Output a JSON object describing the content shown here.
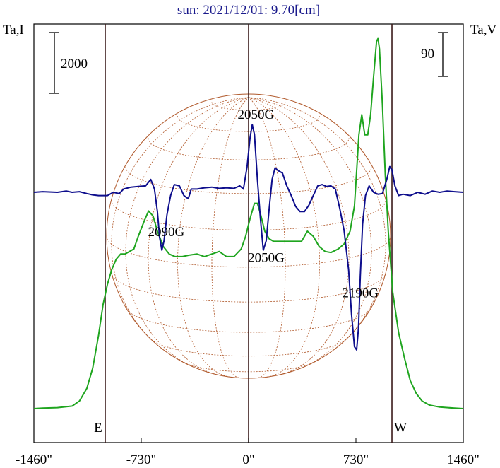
{
  "chart_data": {
    "type": "line",
    "title": "sun: 2021/12/01: 9.70[cm]",
    "left_axis_label": "Ta,I",
    "right_axis_label": "Ta,V",
    "left_scale_bar": "2000",
    "right_scale_bar": "90",
    "x_unit": "arcsec",
    "xlim": [
      -1460,
      1460
    ],
    "x_ticks": [
      {
        "value": -1460,
        "label": "-1460\""
      },
      {
        "value": -730,
        "label": "-730\""
      },
      {
        "value": 0,
        "label": "0\""
      },
      {
        "value": 730,
        "label": "730\""
      },
      {
        "value": 1460,
        "label": "1460\""
      }
    ],
    "limb_markers": [
      {
        "x": -975,
        "label": "E"
      },
      {
        "x": 975,
        "label": "W"
      }
    ],
    "annotations": [
      {
        "text": "2050G",
        "x": 50,
        "curve": "V",
        "position": "above"
      },
      {
        "text": "2090G",
        "x": -560,
        "curve": "V",
        "position": "below"
      },
      {
        "text": "2050G",
        "x": 120,
        "curve": "V",
        "position": "below"
      },
      {
        "text": "2190G",
        "x": 760,
        "curve": "V",
        "position": "below"
      }
    ],
    "series": [
      {
        "id": "I",
        "color": "#1fa51f",
        "points": [
          [
            -1460,
            0.0
          ],
          [
            -1400,
            0.01
          ],
          [
            -1300,
            0.02
          ],
          [
            -1200,
            0.05
          ],
          [
            -1150,
            0.15
          ],
          [
            -1100,
            0.4
          ],
          [
            -1060,
            0.8
          ],
          [
            -1020,
            1.45
          ],
          [
            -990,
            2.05
          ],
          [
            -960,
            2.45
          ],
          [
            -930,
            2.75
          ],
          [
            -900,
            2.95
          ],
          [
            -870,
            3.05
          ],
          [
            -840,
            3.05
          ],
          [
            -810,
            3.1
          ],
          [
            -780,
            3.15
          ],
          [
            -750,
            3.4
          ],
          [
            -710,
            3.7
          ],
          [
            -680,
            3.9
          ],
          [
            -650,
            3.8
          ],
          [
            -620,
            3.5
          ],
          [
            -580,
            3.2
          ],
          [
            -540,
            3.05
          ],
          [
            -500,
            3.0
          ],
          [
            -450,
            3.0
          ],
          [
            -400,
            3.03
          ],
          [
            -350,
            3.05
          ],
          [
            -300,
            3.0
          ],
          [
            -250,
            3.05
          ],
          [
            -200,
            3.1
          ],
          [
            -150,
            3.0
          ],
          [
            -100,
            3.0
          ],
          [
            -50,
            3.15
          ],
          [
            -20,
            3.4
          ],
          [
            10,
            3.75
          ],
          [
            40,
            4.05
          ],
          [
            60,
            4.05
          ],
          [
            80,
            3.85
          ],
          [
            110,
            3.5
          ],
          [
            140,
            3.35
          ],
          [
            170,
            3.3
          ],
          [
            200,
            3.3
          ],
          [
            250,
            3.3
          ],
          [
            300,
            3.3
          ],
          [
            360,
            3.3
          ],
          [
            400,
            3.5
          ],
          [
            440,
            3.4
          ],
          [
            480,
            3.2
          ],
          [
            520,
            3.1
          ],
          [
            560,
            3.08
          ],
          [
            610,
            3.15
          ],
          [
            650,
            3.25
          ],
          [
            690,
            3.5
          ],
          [
            720,
            4.0
          ],
          [
            750,
            5.4
          ],
          [
            770,
            5.8
          ],
          [
            790,
            5.4
          ],
          [
            810,
            5.4
          ],
          [
            830,
            5.8
          ],
          [
            850,
            6.55
          ],
          [
            870,
            7.25
          ],
          [
            880,
            7.3
          ],
          [
            890,
            7.1
          ],
          [
            910,
            6.0
          ],
          [
            930,
            4.6
          ],
          [
            950,
            3.5
          ],
          [
            980,
            2.3
          ],
          [
            1020,
            1.5
          ],
          [
            1060,
            1.0
          ],
          [
            1100,
            0.55
          ],
          [
            1140,
            0.3
          ],
          [
            1180,
            0.15
          ],
          [
            1230,
            0.07
          ],
          [
            1300,
            0.03
          ],
          [
            1400,
            0.01
          ],
          [
            1460,
            0.0
          ]
        ]
      },
      {
        "id": "V",
        "color": "#0d0d8c",
        "points": [
          [
            -1460,
            0.0
          ],
          [
            -1400,
            0.01
          ],
          [
            -1300,
            0.0
          ],
          [
            -1240,
            0.02
          ],
          [
            -1200,
            0.0
          ],
          [
            -1150,
            0.01
          ],
          [
            -1100,
            -0.02
          ],
          [
            -1060,
            -0.04
          ],
          [
            -1020,
            -0.05
          ],
          [
            -990,
            -0.05
          ],
          [
            -960,
            -0.05
          ],
          [
            -920,
            0.0
          ],
          [
            -880,
            -0.02
          ],
          [
            -850,
            0.05
          ],
          [
            -800,
            0.08
          ],
          [
            -750,
            0.09
          ],
          [
            -700,
            0.1
          ],
          [
            -665,
            0.2
          ],
          [
            -640,
            0.05
          ],
          [
            -620,
            -0.3
          ],
          [
            -605,
            -0.7
          ],
          [
            -590,
            -0.9
          ],
          [
            -575,
            -0.75
          ],
          [
            -555,
            -0.35
          ],
          [
            -530,
            -0.05
          ],
          [
            -505,
            0.12
          ],
          [
            -470,
            0.1
          ],
          [
            -440,
            -0.05
          ],
          [
            -410,
            -0.1
          ],
          [
            -390,
            0.05
          ],
          [
            -350,
            0.05
          ],
          [
            -300,
            0.07
          ],
          [
            -250,
            0.08
          ],
          [
            -200,
            0.06
          ],
          [
            -150,
            0.07
          ],
          [
            -100,
            0.06
          ],
          [
            -60,
            0.1
          ],
          [
            -35,
            0.05
          ],
          [
            -10,
            0.4
          ],
          [
            10,
            0.85
          ],
          [
            25,
            1.05
          ],
          [
            40,
            0.9
          ],
          [
            60,
            0.2
          ],
          [
            80,
            -0.4
          ],
          [
            100,
            -0.9
          ],
          [
            120,
            -0.75
          ],
          [
            140,
            -0.25
          ],
          [
            160,
            0.2
          ],
          [
            180,
            0.38
          ],
          [
            200,
            0.34
          ],
          [
            230,
            0.3
          ],
          [
            260,
            0.1
          ],
          [
            290,
            -0.05
          ],
          [
            320,
            -0.22
          ],
          [
            350,
            -0.3
          ],
          [
            380,
            -0.3
          ],
          [
            410,
            -0.2
          ],
          [
            440,
            -0.05
          ],
          [
            470,
            0.1
          ],
          [
            500,
            0.12
          ],
          [
            530,
            0.09
          ],
          [
            560,
            0.1
          ],
          [
            590,
            0.05
          ],
          [
            620,
            -0.25
          ],
          [
            650,
            -0.6
          ],
          [
            680,
            -1.2
          ],
          [
            700,
            -1.9
          ],
          [
            720,
            -2.4
          ],
          [
            735,
            -2.45
          ],
          [
            748,
            -2.1
          ],
          [
            760,
            -1.3
          ],
          [
            775,
            -0.5
          ],
          [
            795,
            -0.05
          ],
          [
            820,
            0.1
          ],
          [
            850,
            0.0
          ],
          [
            880,
            -0.03
          ],
          [
            910,
            -0.02
          ],
          [
            940,
            0.2
          ],
          [
            960,
            0.4
          ],
          [
            975,
            0.35
          ],
          [
            995,
            0.1
          ],
          [
            1020,
            -0.05
          ],
          [
            1050,
            -0.03
          ],
          [
            1100,
            -0.05
          ],
          [
            1150,
            0.0
          ],
          [
            1200,
            -0.03
          ],
          [
            1250,
            0.02
          ],
          [
            1300,
            0.0
          ],
          [
            1350,
            0.02
          ],
          [
            1400,
            0.01
          ],
          [
            1460,
            0.0
          ]
        ]
      }
    ]
  }
}
